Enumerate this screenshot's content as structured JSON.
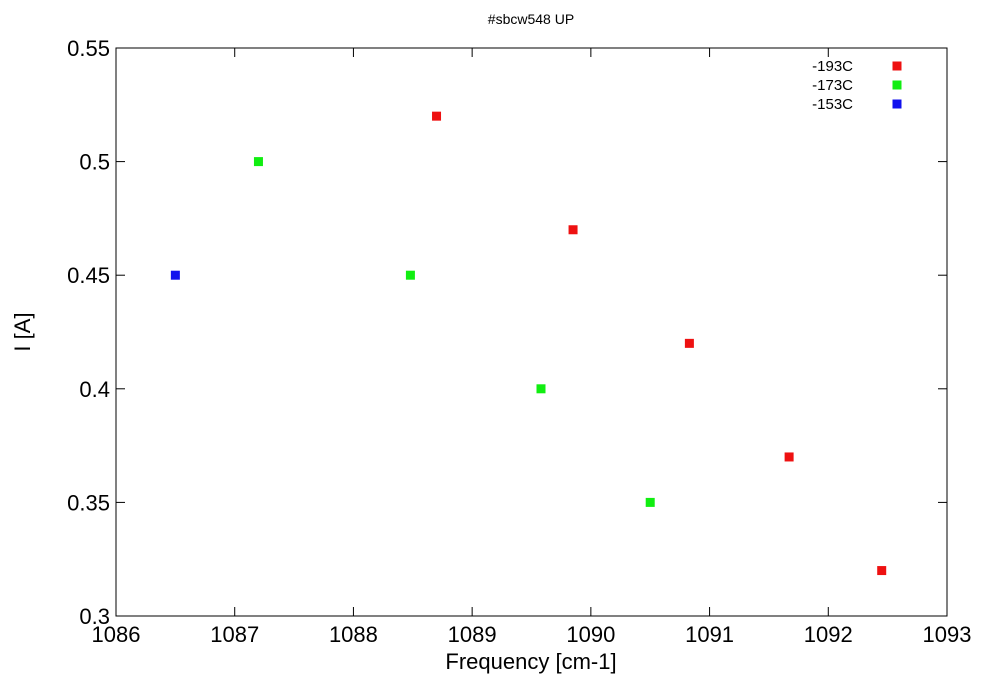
{
  "chart_data": {
    "type": "scatter",
    "title": "#sbcw548 UP",
    "xlabel": "Frequency [cm-1]",
    "ylabel": "I [A]",
    "xlim": [
      1086,
      1093
    ],
    "ylim": [
      0.3,
      0.55
    ],
    "x_ticks": [
      "1086",
      "1087",
      "1088",
      "1089",
      "1090",
      "1091",
      "1092",
      "1093"
    ],
    "y_ticks": [
      "0.3",
      "0.35",
      "0.4",
      "0.45",
      "0.5",
      "0.55"
    ],
    "grid": false,
    "legend_position": "top-right",
    "series": [
      {
        "name": "-193C",
        "color": "#ee1111",
        "x": [
          1088.7,
          1089.85,
          1090.83,
          1091.67,
          1092.45
        ],
        "y": [
          0.52,
          0.47,
          0.42,
          0.37,
          0.32
        ]
      },
      {
        "name": "-173C",
        "color": "#11ee11",
        "x": [
          1087.2,
          1088.48,
          1089.58,
          1090.5
        ],
        "y": [
          0.5,
          0.45,
          0.4,
          0.35
        ]
      },
      {
        "name": "-153C",
        "color": "#1111ee",
        "x": [
          1086.5
        ],
        "y": [
          0.45
        ]
      }
    ]
  }
}
